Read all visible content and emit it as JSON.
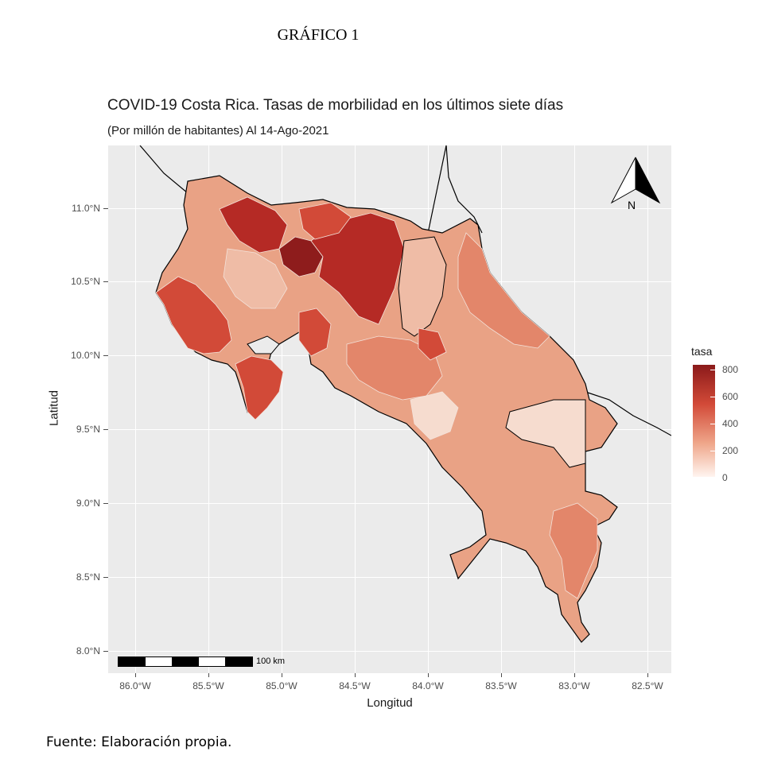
{
  "document": {
    "heading": "GRÁFICO 1",
    "source_note": "Fuente: Elaboración propia."
  },
  "map": {
    "title": "COVID-19 Costa Rica. Tasas de morbilidad en los últimos siete días",
    "subtitle": "(Por millón de habitantes) Al 14-Ago-2021",
    "x_axis_title": "Longitud",
    "y_axis_title": "Latitud",
    "x_ticks": [
      "86.0°W",
      "85.5°W",
      "85.0°W",
      "84.5°W",
      "84.0°W",
      "83.5°W",
      "83.0°W",
      "82.5°W"
    ],
    "y_ticks": [
      "11.0°N",
      "10.5°N",
      "10.0°N",
      "9.5°N",
      "9.0°N",
      "8.5°N",
      "8.0°N"
    ],
    "background_color": "#ebebeb",
    "north_arrow_label": "N",
    "scale_bar_label": "100 km",
    "legend": {
      "title": "tasa",
      "ticks": [
        "800",
        "600",
        "400",
        "200",
        "0"
      ],
      "color_low": "#fff5f0",
      "color_high": "#8b1a1a"
    },
    "regions_colors": {
      "very_high": "#8e1c1c",
      "high": "#b52a25",
      "mid_high": "#d24a38",
      "mid": "#e3866a",
      "low_mid": "#e9a285",
      "low": "#efbca6",
      "very_low": "#f6dccf"
    }
  }
}
